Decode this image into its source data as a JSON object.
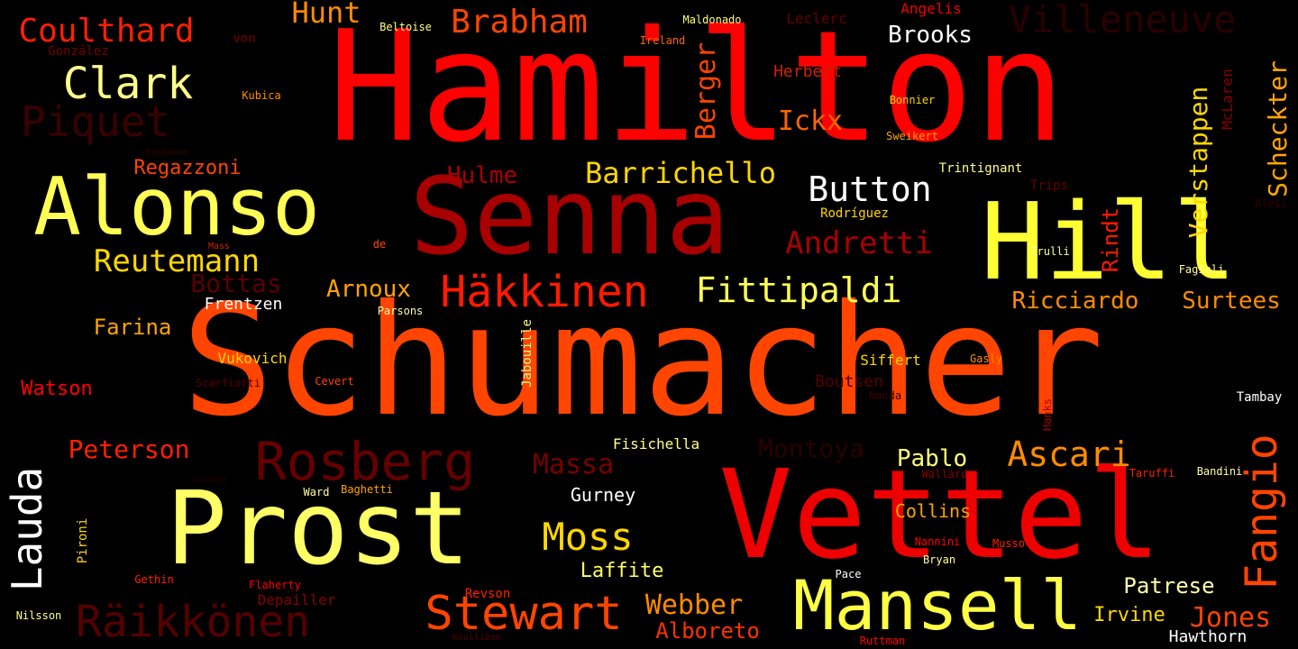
{
  "words": [
    {
      "id": "hamilton",
      "text": "Hamilton",
      "color": "#ff0000"
    },
    {
      "id": "schumacher",
      "text": "Schumacher",
      "color": "#ff4500"
    },
    {
      "id": "senna",
      "text": "Senna",
      "color": "#a80000"
    },
    {
      "id": "vettel",
      "text": "Vettel",
      "color": "#ee0000"
    },
    {
      "id": "prost",
      "text": "Prost",
      "color": "#ffff66"
    },
    {
      "id": "hill",
      "text": "Hill",
      "color": "#ffff33"
    },
    {
      "id": "alonso",
      "text": "Alonso",
      "color": "#ffff55"
    },
    {
      "id": "mansell",
      "text": "Mansell",
      "color": "#ffff44"
    },
    {
      "id": "stewart",
      "text": "Stewart",
      "color": "#ff4500"
    },
    {
      "id": "raikkonen",
      "text": "Räikkönen",
      "color": "#550000"
    },
    {
      "id": "lauda",
      "text": "Lauda",
      "color": "#ffffff"
    },
    {
      "id": "fangio",
      "text": "Fangio",
      "color": "#ff4500"
    },
    {
      "id": "rosberg",
      "text": "Rosberg",
      "color": "#660000"
    },
    {
      "id": "hakkinen",
      "text": "Häkkinen",
      "color": "#ff1a00"
    },
    {
      "id": "coulthard",
      "text": "Coulthard",
      "color": "#ff2000"
    },
    {
      "id": "clark",
      "text": "Clark",
      "color": "#ffff88"
    },
    {
      "id": "piquet",
      "text": "Piquet",
      "color": "#3a0000"
    },
    {
      "id": "villeneuve",
      "text": "Villeneuve",
      "color": "#2a0000"
    },
    {
      "id": "brabham",
      "text": "Brabham",
      "color": "#ff4500"
    },
    {
      "id": "hunt",
      "text": "Hunt",
      "color": "#ff8c00"
    },
    {
      "id": "barrichello",
      "text": "Barrichello",
      "color": "#ffd700"
    },
    {
      "id": "button",
      "text": "Button",
      "color": "#ffffff"
    },
    {
      "id": "fittipaldi",
      "text": "Fittipaldi",
      "color": "#ffff55"
    },
    {
      "id": "moss",
      "text": "Moss",
      "color": "#ffd700"
    },
    {
      "id": "ascari",
      "text": "Ascari",
      "color": "#ff8c00"
    },
    {
      "id": "andretti",
      "text": "Andretti",
      "color": "#aa0000"
    },
    {
      "id": "reutemann",
      "text": "Reutemann",
      "color": "#ffd700"
    },
    {
      "id": "ickx",
      "text": "Ickx",
      "color": "#ff6600"
    },
    {
      "id": "brooks",
      "text": "Brooks",
      "color": "#ffffff"
    },
    {
      "id": "scheckter",
      "text": "Scheckter",
      "color": "#ffa500"
    },
    {
      "id": "verstappen",
      "text": "Verstappen",
      "color": "#ffd700"
    },
    {
      "id": "berger",
      "text": "Berger",
      "color": "#ff4500"
    },
    {
      "id": "hulme",
      "text": "Hulme",
      "color": "#aa0000"
    },
    {
      "id": "regazzoni",
      "text": "Regazzoni",
      "color": "#ff4500"
    },
    {
      "id": "arnoux",
      "text": "Arnoux",
      "color": "#ffa500"
    },
    {
      "id": "bottas",
      "text": "Bottas",
      "color": "#5a0000"
    },
    {
      "id": "farina",
      "text": "Farina",
      "color": "#ffa500"
    },
    {
      "id": "frentzen",
      "text": "Frentzen",
      "color": "#ffffff"
    },
    {
      "id": "vukovich",
      "text": "Vukovich",
      "color": "#ffd700"
    },
    {
      "id": "watson",
      "text": "Watson",
      "color": "#ff0000"
    },
    {
      "id": "peterson",
      "text": "Peterson",
      "color": "#ff2000"
    },
    {
      "id": "massa",
      "text": "Massa",
      "color": "#770000"
    },
    {
      "id": "montoya",
      "text": "Montoya",
      "color": "#2a0000"
    },
    {
      "id": "pablo",
      "text": "Pablo",
      "color": "#ffff77"
    },
    {
      "id": "ricciardo",
      "text": "Ricciardo",
      "color": "#ff8c00"
    },
    {
      "id": "surtees",
      "text": "Surtees",
      "color": "#ff8c00"
    },
    {
      "id": "rindt",
      "text": "Rindt",
      "color": "#ff1a00"
    },
    {
      "id": "patrese",
      "text": "Patrese",
      "color": "#ffffaa"
    },
    {
      "id": "jones",
      "text": "Jones",
      "color": "#ff4500"
    },
    {
      "id": "irvine",
      "text": "Irvine",
      "color": "#ffd700"
    },
    {
      "id": "hawthorn",
      "text": "Hawthorn",
      "color": "#ffffff"
    },
    {
      "id": "webber",
      "text": "Webber",
      "color": "#ff8c00"
    },
    {
      "id": "alboreto",
      "text": "Alboreto",
      "color": "#ff3300"
    },
    {
      "id": "laffite",
      "text": "Laffite",
      "color": "#ffff66"
    },
    {
      "id": "gurney",
      "text": "Gurney",
      "color": "#ffffff"
    },
    {
      "id": "collins",
      "text": "Collins",
      "color": "#ffa500"
    },
    {
      "id": "fisichella",
      "text": "Fisichella",
      "color": "#ffff88"
    },
    {
      "id": "tambay",
      "text": "Tambay",
      "color": "#ffffff"
    },
    {
      "id": "boutsen",
      "text": "Boutsen",
      "color": "#550000"
    },
    {
      "id": "siffert",
      "text": "Siffert",
      "color": "#ffd700"
    },
    {
      "id": "gasly",
      "text": "Gasly",
      "color": "#ff8c00"
    },
    {
      "id": "trintignant",
      "text": "Trintignant",
      "color": "#ffff88"
    },
    {
      "id": "rodriguez",
      "text": "Rodríguez",
      "color": "#ffd700"
    },
    {
      "id": "herbert",
      "text": "Herbert",
      "color": "#cc2200"
    },
    {
      "id": "leclerc",
      "text": "Leclerc",
      "color": "#660000"
    },
    {
      "id": "angelis",
      "text": "Angelis",
      "color": "#ee0000"
    },
    {
      "id": "maldonado",
      "text": "Maldonado",
      "color": "#ffff77"
    },
    {
      "id": "beltoise",
      "text": "Beltoise",
      "color": "#ffff88"
    },
    {
      "id": "ireland",
      "text": "Ireland",
      "color": "#ff6600"
    },
    {
      "id": "mclaren",
      "text": "McLaren",
      "color": "#880000"
    },
    {
      "id": "bonnier",
      "text": "Bonnier",
      "color": "#ffd700"
    },
    {
      "id": "sweikert",
      "text": "Sweikert",
      "color": "#ffa500"
    },
    {
      "id": "trips",
      "text": "Trips",
      "color": "#660000"
    },
    {
      "id": "alesi",
      "text": "Alesi",
      "color": "#330000"
    },
    {
      "id": "trulli",
      "text": "Trulli",
      "color": "#ffff99"
    },
    {
      "id": "fagioli",
      "text": "Fagioli",
      "color": "#ffff99"
    },
    {
      "id": "von",
      "text": "von",
      "color": "#770000"
    },
    {
      "id": "gonzalez",
      "text": "González",
      "color": "#770000"
    },
    {
      "id": "kubica",
      "text": "Kubica",
      "color": "#ff8c00"
    },
    {
      "id": "rathmann",
      "text": "Rathmann",
      "color": "#330000"
    },
    {
      "id": "mass",
      "text": "Mass",
      "color": "#cc2200"
    },
    {
      "id": "de",
      "text": "de",
      "color": "#ff4500"
    },
    {
      "id": "parsons",
      "text": "Parsons",
      "color": "#ffffaa"
    },
    {
      "id": "jabouille",
      "text": "Jabouille",
      "color": "#ffff88"
    },
    {
      "id": "scarfiotti",
      "text": "Scarfiotti",
      "color": "#550000"
    },
    {
      "id": "cevert",
      "text": "Cevert",
      "color": "#ff4500"
    },
    {
      "id": "nanda",
      "text": "Nanda",
      "color": "#3a0000"
    },
    {
      "id": "hanks",
      "text": "Hanks",
      "color": "#aa0000"
    },
    {
      "id": "wallard",
      "text": "Wallard",
      "color": "#880000"
    },
    {
      "id": "taruffi",
      "text": "Taruffi",
      "color": "#ff2000"
    },
    {
      "id": "bandini",
      "text": "Bandini",
      "color": "#ffffaa"
    },
    {
      "id": "baghetti",
      "text": "Baghetti",
      "color": "#ffa500"
    },
    {
      "id": "ward",
      "text": "Ward",
      "color": "#ffff99"
    },
    {
      "id": "cannon",
      "text": "Cannon",
      "color": "#2a0000"
    },
    {
      "id": "pironi",
      "text": "Pironi",
      "color": "#ffd700"
    },
    {
      "id": "gethin",
      "text": "Gethin",
      "color": "#ff2000"
    },
    {
      "id": "flaherty",
      "text": "Flaherty",
      "color": "#ff0000"
    },
    {
      "id": "depailler",
      "text": "Depailler",
      "color": "#880000"
    },
    {
      "id": "revson",
      "text": "Revson",
      "color": "#ff2000"
    },
    {
      "id": "nilsson",
      "text": "Nilsson",
      "color": "#ffff88"
    },
    {
      "id": "nannini",
      "text": "Nannini",
      "color": "#ff0000"
    },
    {
      "id": "musso",
      "text": "Musso",
      "color": "#ff2000"
    },
    {
      "id": "bryan",
      "text": "Bryan",
      "color": "#ffff99"
    },
    {
      "id": "pace",
      "text": "Pace",
      "color": "#ffffff"
    },
    {
      "id": "ruttman",
      "text": "Ruttman",
      "color": "#ff0000"
    },
    {
      "id": "rodellini",
      "text": "Koulliben",
      "color": "#550000"
    }
  ]
}
